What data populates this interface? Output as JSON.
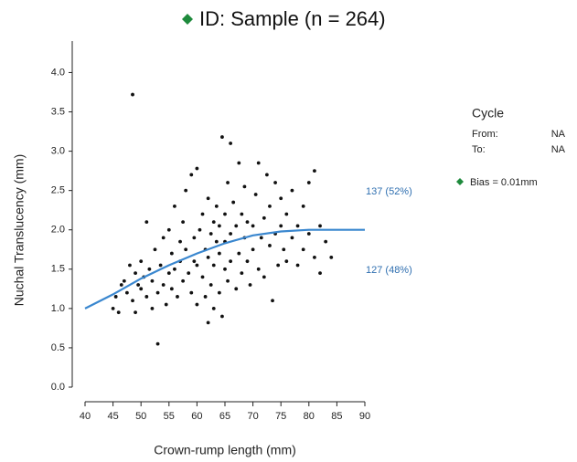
{
  "chart_data": {
    "type": "scatter",
    "title": "ID: Sample (n = 264)",
    "title_marker_color": "#1e8a3c",
    "x_label": "Crown-rump length (mm)",
    "y_label": "Nuchal Translucency (mm)",
    "xlim": [
      40,
      90
    ],
    "xticks": [
      40,
      45,
      50,
      55,
      60,
      65,
      70,
      75,
      80,
      85,
      90
    ],
    "ylim": [
      0,
      4.4
    ],
    "yticks": [
      {
        "value": 0,
        "label": "0.0"
      },
      {
        "value": 0.5,
        "label": "0.5"
      },
      {
        "value": 1,
        "label": "1.0"
      },
      {
        "value": 1.5,
        "label": "1.5"
      },
      {
        "value": 2,
        "label": "2.0"
      },
      {
        "value": 2.5,
        "label": "2.5"
      },
      {
        "value": 3,
        "label": "3.0"
      },
      {
        "value": 3.5,
        "label": "3.5"
      },
      {
        "value": 4,
        "label": "4.0"
      }
    ],
    "series": [
      {
        "type": "scatter",
        "color": "#111111",
        "x": [
          45,
          45.5,
          46,
          46.5,
          47,
          47.5,
          48,
          48.5,
          48.5,
          49,
          49,
          49.5,
          50,
          50,
          50.5,
          51,
          51,
          51.5,
          52,
          52,
          52.5,
          53,
          53,
          53.5,
          54,
          54,
          54.5,
          55,
          55,
          55.5,
          55.5,
          56,
          56,
          56.5,
          57,
          57,
          57.5,
          57.5,
          58,
          58,
          58.5,
          59,
          59,
          59.5,
          59.5,
          60,
          60,
          60,
          60.5,
          61,
          61,
          61.5,
          61.5,
          62,
          62,
          62,
          62.5,
          62.5,
          63,
          63,
          63,
          63.5,
          63.5,
          64,
          64,
          64,
          64.5,
          64.5,
          65,
          65,
          65,
          65.5,
          65.5,
          66,
          66,
          66,
          66.5,
          67,
          67,
          67.5,
          67.5,
          68,
          68,
          68.5,
          68.5,
          69,
          69,
          69.5,
          70,
          70,
          70.5,
          71,
          71,
          71.5,
          72,
          72,
          72.5,
          73,
          73,
          73.5,
          74,
          74,
          74.5,
          75,
          75,
          75.5,
          76,
          76,
          77,
          77,
          78,
          78,
          79,
          79,
          80,
          80,
          81,
          81,
          82,
          82,
          83,
          84
        ],
        "values": [
          1.0,
          1.15,
          0.95,
          1.3,
          1.35,
          1.2,
          1.55,
          3.72,
          1.1,
          1.45,
          0.95,
          1.3,
          1.6,
          1.25,
          1.4,
          2.1,
          1.15,
          1.5,
          1.0,
          1.35,
          1.75,
          0.55,
          1.2,
          1.55,
          1.9,
          1.3,
          1.05,
          1.45,
          2.0,
          1.7,
          1.25,
          2.3,
          1.5,
          1.15,
          1.85,
          1.6,
          2.1,
          1.35,
          1.75,
          2.5,
          1.45,
          2.7,
          1.2,
          1.9,
          1.6,
          2.78,
          1.05,
          1.55,
          2.0,
          1.4,
          2.2,
          1.75,
          1.15,
          0.82,
          2.4,
          1.65,
          1.95,
          1.3,
          2.1,
          1.0,
          1.55,
          1.85,
          2.3,
          1.2,
          1.7,
          2.05,
          3.18,
          0.9,
          1.5,
          2.2,
          1.85,
          2.6,
          1.35,
          3.1,
          1.95,
          1.6,
          2.35,
          2.05,
          1.25,
          2.85,
          1.7,
          2.2,
          1.45,
          1.9,
          2.55,
          1.6,
          2.1,
          1.3,
          2.05,
          1.75,
          2.45,
          1.5,
          2.85,
          1.9,
          2.15,
          1.4,
          2.7,
          1.8,
          2.3,
          1.1,
          2.6,
          1.95,
          1.55,
          2.4,
          2.05,
          1.75,
          2.2,
          1.6,
          2.5,
          1.9,
          2.05,
          1.55,
          2.3,
          1.75,
          1.95,
          2.6,
          1.65,
          2.75,
          2.05,
          1.45,
          1.85,
          1.65
        ]
      },
      {
        "type": "line",
        "color": "#3a87cf",
        "x": [
          40,
          45,
          50,
          55,
          60,
          65,
          70,
          75,
          80,
          85,
          90
        ],
        "values": [
          1.0,
          1.18,
          1.38,
          1.55,
          1.7,
          1.83,
          1.93,
          1.98,
          2.0,
          2.0,
          2.0
        ]
      }
    ],
    "annotations": [
      "137 (52%)",
      "127 (48%)"
    ],
    "panel": {
      "title": "Cycle",
      "rows": [
        [
          "From:",
          "NA"
        ],
        [
          "To:",
          "NA"
        ]
      ]
    },
    "legend": {
      "label": "Bias = 0.01mm",
      "color": "#1e8a3c"
    }
  }
}
